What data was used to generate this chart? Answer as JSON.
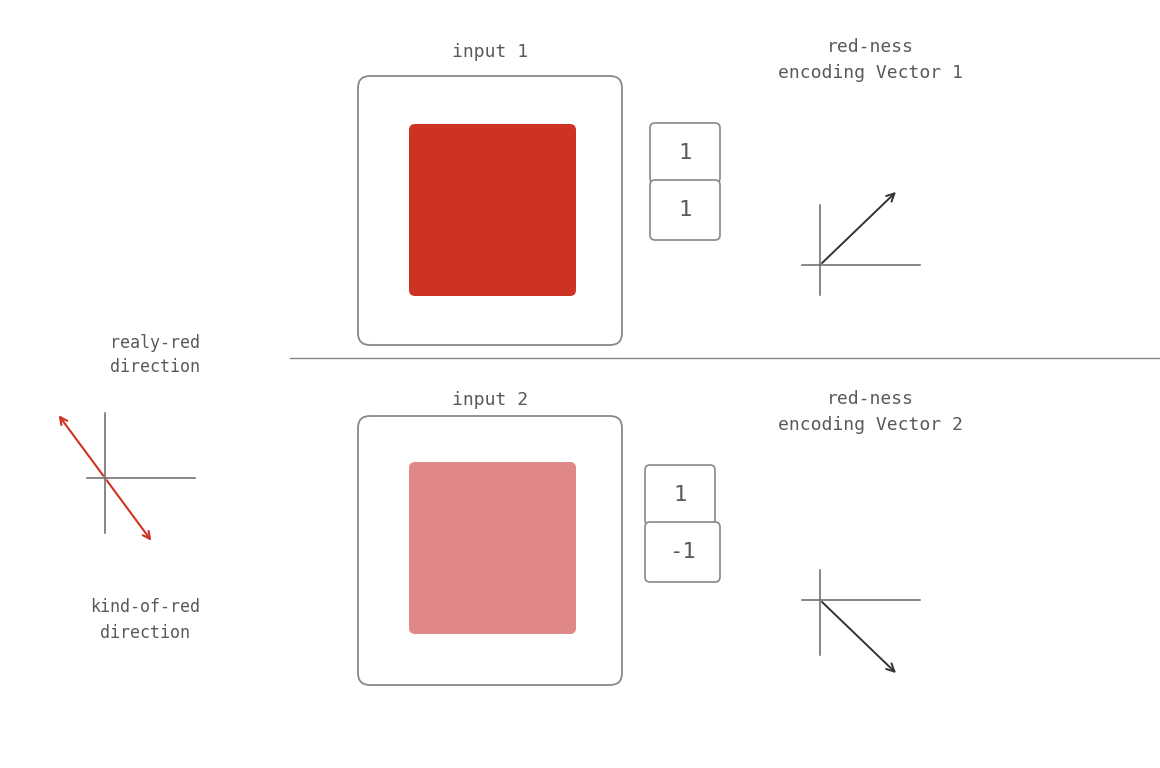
{
  "bg_color": "#ffffff",
  "text_color": "#595959",
  "font_family": "monospace",
  "title_fontsize": 13,
  "label_fontsize": 12,
  "vector_fontsize": 16,
  "input1_title": "input 1",
  "input2_title": "input 2",
  "vec1_title": "red-ness\nencoding Vector 1",
  "vec2_title": "red-ness\nencoding Vector 2",
  "really_red_label": "realy-red\ndirection",
  "kind_of_red_label": "kind-of-red\ndirection",
  "input1_outer_color": "#ffffff",
  "input1_inner_color": "#cc3322",
  "input2_outer_color": "#ffffff",
  "input2_inner_color": "#e08888",
  "box_edge_color": "#888888",
  "divider_color": "#888888",
  "vec1_values": [
    "1",
    "1"
  ],
  "vec2_values": [
    "1",
    "-1"
  ],
  "arrow_dark_color": "#333333",
  "red_arrow_color": "#cc3322"
}
